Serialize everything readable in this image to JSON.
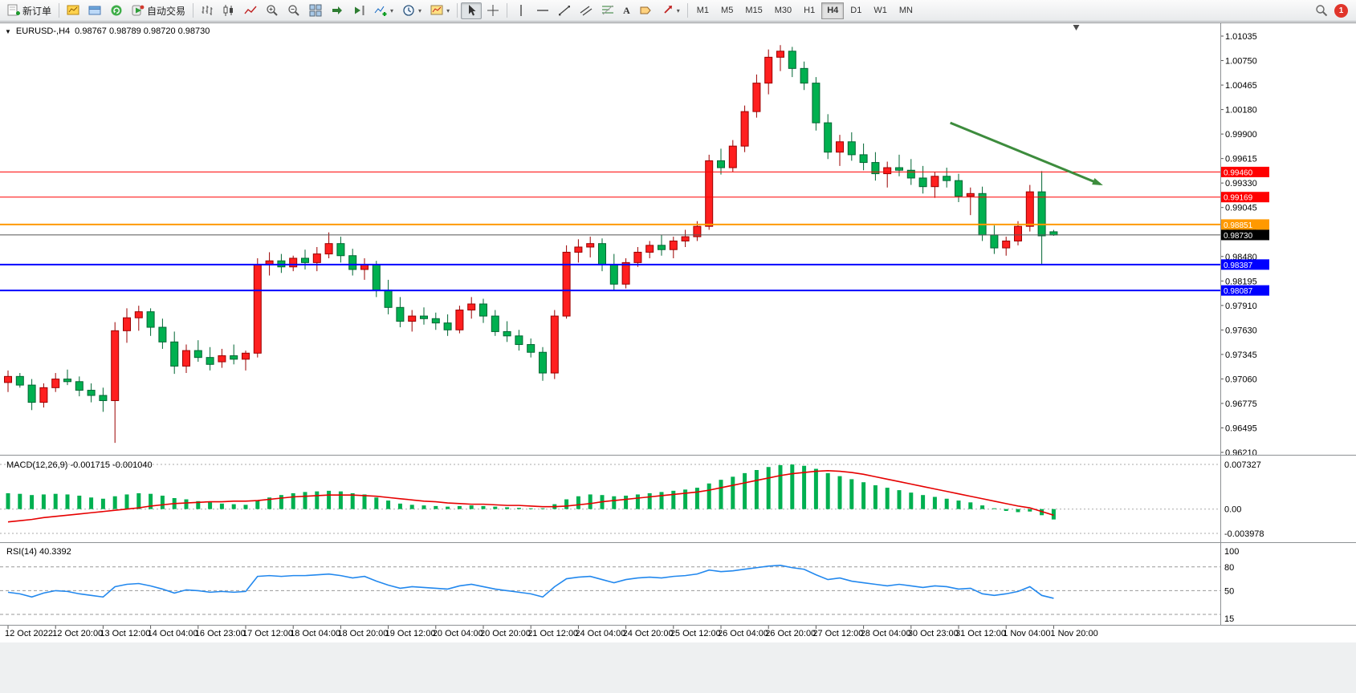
{
  "toolbar": {
    "new_order_label": "新订单",
    "auto_trading_label": "自动交易",
    "text_tool_label": "A",
    "timeframes": [
      "M1",
      "M5",
      "M15",
      "M30",
      "H1",
      "H4",
      "D1",
      "W1",
      "MN"
    ],
    "active_timeframe": "H4",
    "notification_count": "1",
    "icons": {
      "new-order-icon": "document+green-plus",
      "new-chart-icon": "yellow-chart",
      "profiles-icon": "blue-window",
      "refresh-icon": "green-circle-arrow",
      "auto-trading-icon": "green-play",
      "bar-chart-icon": "ohlc-bars",
      "candle-chart-icon": "two-candles",
      "line-chart-icon": "zigzag-line",
      "zoom-in-icon": "magnifier-plus",
      "zoom-out-icon": "magnifier-minus",
      "tile-windows-icon": "2x2-squares",
      "auto-scroll-icon": "green-right-arrow",
      "chart-shift-icon": "green-left-arrow-bar",
      "indicators-icon": "chart-plus",
      "periods-icon": "clock",
      "templates-icon": "chart-template",
      "cursor-icon": "pointer-arrow",
      "crosshair-icon": "cross",
      "vline-icon": "vertical-line",
      "hline-icon": "horizontal-line",
      "trendline-icon": "diagonal-line",
      "channel-icon": "parallel-lines",
      "fibonacci-icon": "fibo-levels",
      "label-icon": "tag",
      "arrows-icon": "red-arrow",
      "search-icon": "magnifier",
      "chevron-down-icon": "▾",
      "one-click-toggle-icon": "▼"
    }
  },
  "chart": {
    "symbol_period": "EURUSD-,H4",
    "ohlc_text": "0.98767 0.98789 0.98720 0.98730",
    "macd_text": "MACD(12,26,9) -0.001715 -0.001040",
    "rsi_text": "RSI(14) 40.3392"
  },
  "chart_data": {
    "type": "candlestick",
    "symbol": "EURUSD-",
    "timeframe": "H4",
    "current_bar": {
      "open": 0.98767,
      "high": 0.98789,
      "low": 0.9872,
      "close": 0.9873
    },
    "colors": {
      "bull": "#ff1f1f",
      "bull_border": "#9b0000",
      "bear": "#00b050",
      "bear_border": "#006633",
      "macd_hist": "#00b050",
      "macd_signal": "#e60000",
      "rsi_line": "#2288ee",
      "arrow": "#3d8c3d"
    },
    "price_axis": {
      "min": 0.9621,
      "max": 1.01035,
      "ticks": [
        "1.01035",
        "1.00750",
        "1.00465",
        "1.00180",
        "0.99900",
        "0.99615",
        "0.99330",
        "0.99045",
        "0.98760",
        "0.98480",
        "0.98195",
        "0.97910",
        "0.97630",
        "0.97345",
        "0.97060",
        "0.96775",
        "0.96495",
        "0.96210"
      ]
    },
    "hlines": [
      {
        "price": 0.9946,
        "label": "0.99460",
        "color": "#ff0000",
        "tag_bg": "#ff0000",
        "width": 1
      },
      {
        "price": 0.99169,
        "label": "0.99169",
        "color": "#ff0000",
        "tag_bg": "#ff0000",
        "width": 1
      },
      {
        "price": 0.98851,
        "label": "0.98851",
        "color": "#ff9900",
        "tag_bg": "#ff9900",
        "width": 2
      },
      {
        "price": 0.9873,
        "label": "0.98730",
        "color": "#555555",
        "tag_bg": "#000000",
        "width": 1
      },
      {
        "price": 0.98387,
        "label": "0.98387",
        "color": "#0000ff",
        "tag_bg": "#0000ff",
        "width": 2
      },
      {
        "price": 0.98087,
        "label": "0.98087",
        "color": "#0000ff",
        "tag_bg": "#0000ff",
        "width": 2
      }
    ],
    "arrow": {
      "i1": 79.3,
      "p1": 1.0003,
      "i2": 91.9,
      "p2": 0.9932
    },
    "shift_marker_index": 89.9,
    "candles": [
      [
        0.9702,
        0.9716,
        0.9691,
        0.9709
      ],
      [
        0.9709,
        0.9713,
        0.9696,
        0.9699
      ],
      [
        0.9699,
        0.9706,
        0.967,
        0.9679
      ],
      [
        0.9679,
        0.9701,
        0.9673,
        0.9696
      ],
      [
        0.9696,
        0.9713,
        0.9691,
        0.9706
      ],
      [
        0.9706,
        0.9717,
        0.9699,
        0.9703
      ],
      [
        0.9703,
        0.9709,
        0.9686,
        0.9693
      ],
      [
        0.9693,
        0.9701,
        0.9679,
        0.9687
      ],
      [
        0.9687,
        0.9696,
        0.9668,
        0.9681
      ],
      [
        0.9681,
        0.9772,
        0.9632,
        0.9762
      ],
      [
        0.9762,
        0.9788,
        0.9748,
        0.9777
      ],
      [
        0.9777,
        0.9791,
        0.9762,
        0.9784
      ],
      [
        0.9784,
        0.9788,
        0.9756,
        0.9766
      ],
      [
        0.9766,
        0.9776,
        0.9741,
        0.9749
      ],
      [
        0.9749,
        0.9761,
        0.9712,
        0.9721
      ],
      [
        0.9721,
        0.9746,
        0.9713,
        0.9739
      ],
      [
        0.9739,
        0.9751,
        0.9726,
        0.9731
      ],
      [
        0.9731,
        0.9743,
        0.9716,
        0.9723
      ],
      [
        0.9726,
        0.9741,
        0.9719,
        0.9733
      ],
      [
        0.9733,
        0.9746,
        0.9723,
        0.9729
      ],
      [
        0.9729,
        0.9739,
        0.9716,
        0.9736
      ],
      [
        0.9736,
        0.9846,
        0.9731,
        0.9839
      ],
      [
        0.9839,
        0.9853,
        0.9826,
        0.9843
      ],
      [
        0.9843,
        0.9851,
        0.9829,
        0.9836
      ],
      [
        0.9836,
        0.9849,
        0.9831,
        0.9846
      ],
      [
        0.9846,
        0.9856,
        0.9833,
        0.9841
      ],
      [
        0.9841,
        0.9859,
        0.9831,
        0.9851
      ],
      [
        0.9851,
        0.9876,
        0.9846,
        0.9863
      ],
      [
        0.9863,
        0.9871,
        0.9841,
        0.9849
      ],
      [
        0.9849,
        0.9857,
        0.9826,
        0.9833
      ],
      [
        0.9833,
        0.9846,
        0.9821,
        0.9839
      ],
      [
        0.9839,
        0.9843,
        0.9801,
        0.9809
      ],
      [
        0.9809,
        0.9821,
        0.9781,
        0.9789
      ],
      [
        0.9789,
        0.9801,
        0.9766,
        0.9773
      ],
      [
        0.9773,
        0.9786,
        0.9761,
        0.9779
      ],
      [
        0.9779,
        0.9789,
        0.9769,
        0.9776
      ],
      [
        0.9776,
        0.9783,
        0.9763,
        0.9771
      ],
      [
        0.9771,
        0.9781,
        0.9756,
        0.9763
      ],
      [
        0.9763,
        0.9791,
        0.9759,
        0.9786
      ],
      [
        0.9786,
        0.9801,
        0.9776,
        0.9793
      ],
      [
        0.9793,
        0.9799,
        0.9771,
        0.9779
      ],
      [
        0.9779,
        0.9786,
        0.9756,
        0.9761
      ],
      [
        0.9761,
        0.9773,
        0.9749,
        0.9756
      ],
      [
        0.9756,
        0.9763,
        0.9739,
        0.9746
      ],
      [
        0.9746,
        0.9753,
        0.9731,
        0.9737
      ],
      [
        0.9737,
        0.9743,
        0.9704,
        0.9713
      ],
      [
        0.9713,
        0.9786,
        0.9706,
        0.9779
      ],
      [
        0.9779,
        0.9861,
        0.9776,
        0.9853
      ],
      [
        0.9853,
        0.9868,
        0.9841,
        0.9859
      ],
      [
        0.9859,
        0.9871,
        0.9847,
        0.9863
      ],
      [
        0.9863,
        0.9869,
        0.9831,
        0.9839
      ],
      [
        0.9839,
        0.9851,
        0.9809,
        0.9816
      ],
      [
        0.9816,
        0.9846,
        0.9811,
        0.9841
      ],
      [
        0.9841,
        0.9859,
        0.9836,
        0.9853
      ],
      [
        0.9853,
        0.9866,
        0.9846,
        0.9861
      ],
      [
        0.9861,
        0.9873,
        0.9849,
        0.9856
      ],
      [
        0.9856,
        0.9871,
        0.9846,
        0.9866
      ],
      [
        0.9866,
        0.9879,
        0.9859,
        0.9871
      ],
      [
        0.9871,
        0.9889,
        0.9866,
        0.9883
      ],
      [
        0.9883,
        0.9966,
        0.9879,
        0.9959
      ],
      [
        0.9959,
        0.9973,
        0.9943,
        0.9951
      ],
      [
        0.9951,
        0.9983,
        0.9946,
        0.9976
      ],
      [
        0.9976,
        1.0023,
        0.9969,
        1.0016
      ],
      [
        1.0016,
        1.0059,
        1.0009,
        1.0049
      ],
      [
        1.0049,
        1.0088,
        1.0036,
        1.0079
      ],
      [
        1.0079,
        1.0093,
        1.0063,
        1.0086
      ],
      [
        1.0086,
        1.0091,
        1.0056,
        1.0066
      ],
      [
        1.0066,
        1.0074,
        1.0041,
        1.0049
      ],
      [
        1.0049,
        1.0056,
        0.9994,
        1.0003
      ],
      [
        1.0003,
        1.0013,
        0.9961,
        0.9969
      ],
      [
        0.9969,
        0.9989,
        0.9953,
        0.9981
      ],
      [
        0.9981,
        0.9992,
        0.9959,
        0.9966
      ],
      [
        0.9966,
        0.9979,
        0.9948,
        0.9957
      ],
      [
        0.9957,
        0.9969,
        0.9936,
        0.9944
      ],
      [
        0.9944,
        0.9958,
        0.9928,
        0.9951
      ],
      [
        0.9951,
        0.9966,
        0.9941,
        0.9948
      ],
      [
        0.9948,
        0.9961,
        0.9931,
        0.9939
      ],
      [
        0.9939,
        0.9953,
        0.9921,
        0.9929
      ],
      [
        0.9929,
        0.9946,
        0.9916,
        0.9941
      ],
      [
        0.9941,
        0.9951,
        0.9928,
        0.9936
      ],
      [
        0.9936,
        0.9944,
        0.9911,
        0.9918
      ],
      [
        0.9918,
        0.9928,
        0.9896,
        0.9921
      ],
      [
        0.9921,
        0.9929,
        0.9866,
        0.9873
      ],
      [
        0.9873,
        0.9884,
        0.9851,
        0.9858
      ],
      [
        0.9858,
        0.9871,
        0.9849,
        0.9866
      ],
      [
        0.9866,
        0.9889,
        0.9861,
        0.9883
      ],
      [
        0.9883,
        0.9931,
        0.9877,
        0.9923
      ],
      [
        0.9923,
        0.9947,
        0.9838,
        0.9872
      ],
      [
        0.98767,
        0.98789,
        0.9872,
        0.9873
      ]
    ],
    "macd": {
      "label": "MACD(12,26,9)",
      "value_main": -0.001715,
      "value_signal": -0.00104,
      "scale": [
        {
          "v": 0.007327,
          "label": "0.007327"
        },
        {
          "v": 0,
          "label": "0.00"
        },
        {
          "v": -0.003978,
          "label": "-0.003978"
        }
      ],
      "histogram": [
        0.0026,
        0.0025,
        0.0023,
        0.0024,
        0.0025,
        0.0024,
        0.0022,
        0.0019,
        0.0017,
        0.0021,
        0.0024,
        0.0026,
        0.0025,
        0.0022,
        0.0018,
        0.0016,
        0.0013,
        0.0011,
        0.0009,
        0.0008,
        0.0007,
        0.0014,
        0.0019,
        0.0023,
        0.0026,
        0.0028,
        0.0029,
        0.003,
        0.0029,
        0.0026,
        0.0024,
        0.0019,
        0.0014,
        0.0009,
        0.0007,
        0.0006,
        0.0005,
        0.0004,
        0.0005,
        0.0006,
        0.0005,
        0.0004,
        0.0003,
        0.0002,
        0.0001,
        0.0,
        0.0008,
        0.0016,
        0.0021,
        0.0024,
        0.0023,
        0.0021,
        0.0022,
        0.0024,
        0.0026,
        0.0028,
        0.003,
        0.0032,
        0.0035,
        0.0042,
        0.0048,
        0.0053,
        0.0059,
        0.0064,
        0.0069,
        0.0072,
        0.0073,
        0.0071,
        0.0066,
        0.0059,
        0.0054,
        0.0049,
        0.0044,
        0.0039,
        0.0035,
        0.0031,
        0.0027,
        0.0023,
        0.002,
        0.0017,
        0.0014,
        0.0011,
        0.0006,
        0.0001,
        -0.0003,
        -0.0005,
        -0.0004,
        -0.001,
        -0.0017
      ],
      "signal": [
        -0.0021,
        -0.0019,
        -0.0017,
        -0.0014,
        -0.0012,
        -0.001,
        -0.0008,
        -0.0006,
        -0.0004,
        -0.0002,
        0.0,
        0.0002,
        0.0005,
        0.0007,
        0.0009,
        0.001,
        0.0011,
        0.0012,
        0.0012,
        0.0013,
        0.0013,
        0.0014,
        0.0016,
        0.0018,
        0.002,
        0.0021,
        0.0022,
        0.0023,
        0.0023,
        0.0023,
        0.0022,
        0.0021,
        0.0019,
        0.0017,
        0.0015,
        0.0013,
        0.0012,
        0.001,
        0.0009,
        0.0008,
        0.0008,
        0.0007,
        0.0006,
        0.0006,
        0.0005,
        0.0004,
        0.0004,
        0.0005,
        0.0007,
        0.0009,
        0.0012,
        0.0014,
        0.0016,
        0.0018,
        0.002,
        0.0022,
        0.0024,
        0.0026,
        0.0028,
        0.0031,
        0.0035,
        0.0039,
        0.0043,
        0.0047,
        0.0051,
        0.0055,
        0.0058,
        0.006,
        0.0062,
        0.0063,
        0.0062,
        0.006,
        0.0057,
        0.0053,
        0.0049,
        0.0045,
        0.0041,
        0.0037,
        0.0033,
        0.0029,
        0.0025,
        0.0021,
        0.0017,
        0.0013,
        0.0009,
        0.0005,
        0.0002,
        -0.0004,
        -0.001
      ]
    },
    "rsi": {
      "label": "RSI(14)",
      "value": 40.3392,
      "scale": [
        {
          "v": 100,
          "label": "100"
        },
        {
          "v": 80,
          "label": "80"
        },
        {
          "v": 50,
          "label": "50"
        },
        {
          "v": 15,
          "label": "15"
        }
      ],
      "levels": [
        80,
        50,
        20
      ],
      "values": [
        48,
        46,
        42,
        47,
        50,
        49,
        46,
        44,
        42,
        55,
        58,
        59,
        56,
        52,
        47,
        51,
        50,
        48,
        49,
        48,
        49,
        68,
        69,
        68,
        69,
        69,
        70,
        71,
        69,
        66,
        68,
        62,
        57,
        53,
        55,
        54,
        53,
        52,
        56,
        58,
        55,
        52,
        50,
        48,
        46,
        42,
        55,
        65,
        67,
        68,
        64,
        60,
        64,
        66,
        67,
        66,
        68,
        69,
        71,
        76,
        74,
        75,
        77,
        79,
        81,
        82,
        79,
        77,
        70,
        64,
        66,
        62,
        60,
        58,
        56,
        58,
        56,
        54,
        56,
        55,
        52,
        53,
        46,
        44,
        46,
        49,
        55,
        44,
        40.34
      ]
    },
    "time_axis": [
      "12 Oct 2022",
      "12 Oct 20:00",
      "13 Oct 12:00",
      "14 Oct 04:00",
      "16 Oct 23:00",
      "17 Oct 12:00",
      "18 Oct 04:00",
      "18 Oct 20:00",
      "19 Oct 12:00",
      "20 Oct 04:00",
      "20 Oct 20:00",
      "21 Oct 12:00",
      "24 Oct 04:00",
      "24 Oct 20:00",
      "25 Oct 12:00",
      "26 Oct 04:00",
      "26 Oct 20:00",
      "27 Oct 12:00",
      "28 Oct 04:00",
      "30 Oct 23:00",
      "31 Oct 12:00",
      "1 Nov 04:00",
      "1 Nov 20:00"
    ]
  }
}
